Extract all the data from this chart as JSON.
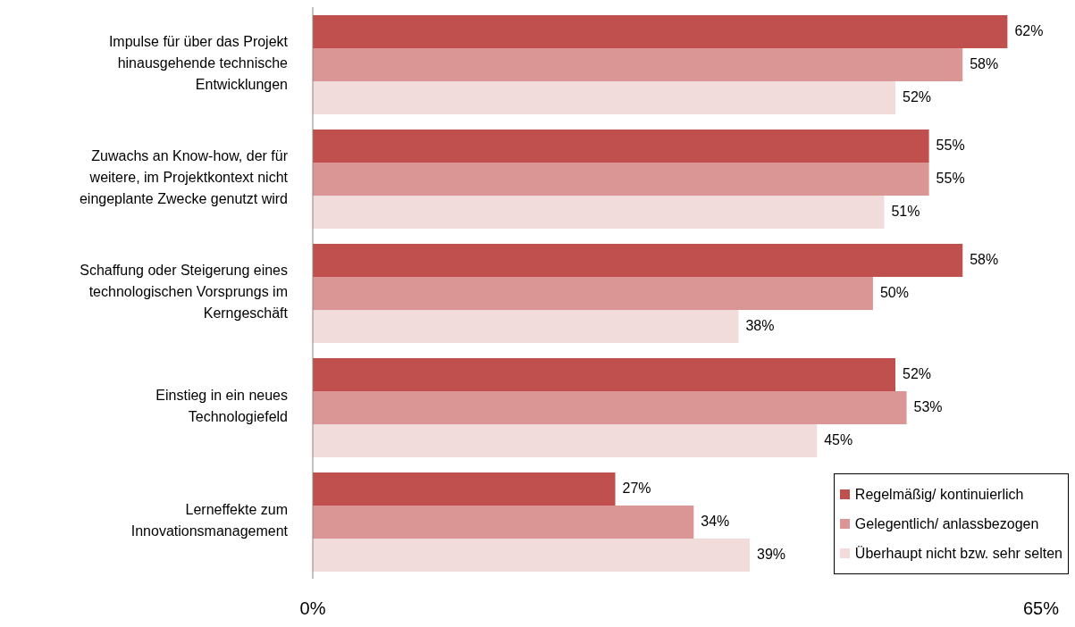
{
  "chart_data": {
    "type": "bar",
    "orientation": "horizontal",
    "categories": [
      "Impulse für über das Projekt hinausgehende technische Entwicklungen",
      "Zuwachs an Know-how, der für weitere, im Projektkontext nicht eingeplante Zwecke genutzt wird",
      "Schaffung oder Steigerung eines technologischen Vorsprungs im Kerngeschäft",
      "Einstieg in ein neues Technologiefeld",
      "Lerneffekte zum Innovationsmanagement"
    ],
    "series": [
      {
        "name": "Regelmäßig/ kontinuierlich",
        "color": "#c0504d",
        "values": [
          62,
          55,
          58,
          52,
          27
        ],
        "value_labels": [
          "62%",
          "55%",
          "58%",
          "52%",
          "27%"
        ]
      },
      {
        "name": "Gelegentlich/ anlassbezogen",
        "color": "#d99694",
        "values": [
          58,
          55,
          50,
          53,
          34
        ],
        "value_labels": [
          "58%",
          "55%",
          "50%",
          "53%",
          "34%"
        ]
      },
      {
        "name": "Überhaupt nicht bzw. sehr selten",
        "color": "#f2dcdb",
        "values": [
          52,
          51,
          38,
          45,
          39
        ],
        "value_labels": [
          "52%",
          "51%",
          "38%",
          "45%",
          "39%"
        ]
      }
    ],
    "xlim": [
      0,
      65
    ],
    "xticks": [
      {
        "value": 0,
        "label": "0%"
      },
      {
        "value": 65,
        "label": "65%"
      }
    ],
    "grid": false,
    "legend": "bottom right"
  }
}
